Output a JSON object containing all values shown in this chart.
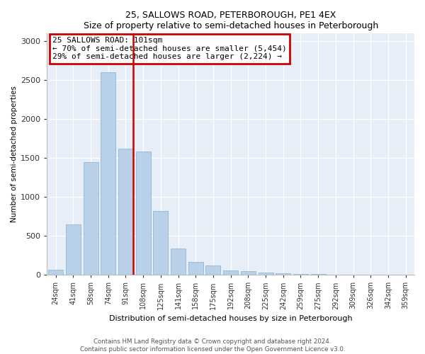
{
  "title": "25, SALLOWS ROAD, PETERBOROUGH, PE1 4EX",
  "subtitle": "Size of property relative to semi-detached houses in Peterborough",
  "xlabel": "Distribution of semi-detached houses by size in Peterborough",
  "ylabel": "Number of semi-detached properties",
  "footer_line1": "Contains HM Land Registry data © Crown copyright and database right 2024.",
  "footer_line2": "Contains public sector information licensed under the Open Government Licence v3.0.",
  "annotation_title": "25 SALLOWS ROAD: 101sqm",
  "annotation_line1": "← 70% of semi-detached houses are smaller (5,454)",
  "annotation_line2": "29% of semi-detached houses are larger (2,224) →",
  "subject_bin_index": 4,
  "bar_color": "#b8d0e8",
  "bar_edge_color": "#90b8d8",
  "subject_line_color": "#cc0000",
  "annotation_box_edgecolor": "#cc0000",
  "background_color": "#e8eef8",
  "categories": [
    "24sqm",
    "41sqm",
    "58sqm",
    "74sqm",
    "91sqm",
    "108sqm",
    "125sqm",
    "141sqm",
    "158sqm",
    "175sqm",
    "192sqm",
    "208sqm",
    "225sqm",
    "242sqm",
    "259sqm",
    "275sqm",
    "292sqm",
    "309sqm",
    "326sqm",
    "342sqm",
    "359sqm"
  ],
  "values": [
    65,
    650,
    1450,
    2600,
    1620,
    1580,
    820,
    340,
    165,
    115,
    55,
    48,
    28,
    18,
    12,
    8,
    5,
    4,
    3,
    2,
    2
  ],
  "ylim": [
    0,
    3100
  ],
  "yticks": [
    0,
    500,
    1000,
    1500,
    2000,
    2500,
    3000
  ]
}
